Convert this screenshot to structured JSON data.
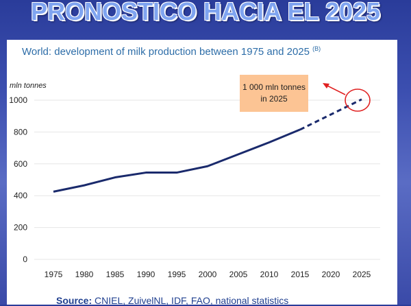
{
  "slide_title": "PRONOSTICO HACIA EL 2025",
  "source": {
    "label": "Source:",
    "text": "CNIEL, ZuivelNL, IDF, FAO, national statistics"
  },
  "callout": {
    "line1": "1 000 mln tonnes",
    "line2": "in 2025"
  },
  "colors": {
    "line": "#1a2a6c",
    "title": "#2d6da8",
    "callout_bg": "#fcc494",
    "circle": "#e02020"
  },
  "chart_data": {
    "type": "line",
    "title": "World: development of milk production between 1975 and 2025",
    "title_note": "(B)",
    "ylabel": "mln tonnes",
    "xlabel": "",
    "x": [
      1975,
      1980,
      1985,
      1990,
      1995,
      2000,
      2005,
      2010,
      2015,
      2020,
      2025
    ],
    "xticks": [
      "1975",
      "1980",
      "1985",
      "1990",
      "1995",
      "2000",
      "2005",
      "2010",
      "2015",
      "2020",
      "2025"
    ],
    "yticks": [
      "0",
      "200",
      "400",
      "600",
      "800",
      "1000"
    ],
    "ylim": [
      0,
      1000
    ],
    "grid": "horizontal",
    "series": [
      {
        "style": "solid",
        "x": [
          1975,
          1980,
          1985,
          1990,
          1995,
          2000,
          2005,
          2010,
          2015
        ],
        "values": [
          425,
          465,
          515,
          545,
          545,
          585,
          660,
          735,
          815
        ]
      },
      {
        "style": "dashed",
        "x": [
          2015,
          2020,
          2025
        ],
        "values": [
          815,
          910,
          1005
        ]
      }
    ]
  }
}
